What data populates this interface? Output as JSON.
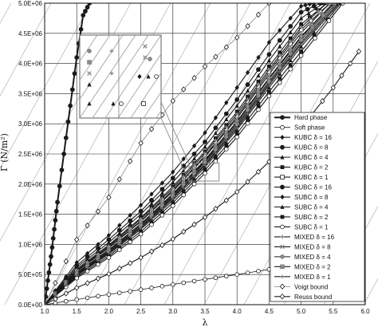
{
  "chart_data": {
    "type": "line",
    "xlabel": "λ",
    "ylabel": "Γ (N/m²)",
    "xlim": [
      1.0,
      6.0
    ],
    "ylim": [
      0,
      5000000
    ],
    "xticks": [
      "1.0",
      "1.5",
      "2.0",
      "2.5",
      "3.0",
      "3.5",
      "4.0",
      "4.5",
      "5.0",
      "5.5",
      "6.0"
    ],
    "yticks": [
      "0.0E+00",
      "5.0E+05",
      "1.0E+06",
      "1.5E+06",
      "2.0E+06",
      "2.5E+06",
      "3.0E+06",
      "3.5E+06",
      "4.0E+06",
      "4.5E+06",
      "5.0E+06"
    ],
    "grid": true,
    "legend_position": "right",
    "has_inset_zoom": true,
    "series": [
      {
        "name": "Hard phase",
        "marker": "circle-filled",
        "line": "thick",
        "x": [
          1.0,
          1.05,
          1.1,
          1.15,
          1.2,
          1.3,
          1.4,
          1.5,
          1.6,
          1.7
        ],
        "y": [
          0,
          400000,
          800000,
          1250000,
          1700000,
          2500000,
          3300000,
          4100000,
          4800000,
          5000000
        ]
      },
      {
        "name": "Soft phase",
        "marker": "circle-open",
        "line": "thin",
        "x": [
          1.0,
          1.5,
          2.0,
          2.5,
          3.0,
          3.5,
          4.0,
          4.5,
          5.0,
          5.5,
          6.0
        ],
        "y": [
          0,
          85000,
          170000,
          250000,
          335000,
          420000,
          500000,
          585000,
          670000,
          750000,
          835000
        ]
      },
      {
        "name": "KUBC δ = 16",
        "marker": "diamond-filled",
        "line": "normal",
        "x": [
          1.0,
          1.5,
          2.0,
          2.5,
          3.0,
          3.5,
          4.0,
          4.5,
          5.0,
          5.2
        ],
        "y": [
          0,
          700000,
          1150000,
          1650000,
          2200000,
          2850000,
          3600000,
          4350000,
          4950000,
          5000000
        ]
      },
      {
        "name": "KUBC δ = 8",
        "marker": "circle-filled",
        "line": "normal",
        "x": [
          1.0,
          1.5,
          2.0,
          2.5,
          3.0,
          3.5,
          4.0,
          4.5,
          5.0,
          5.3
        ],
        "y": [
          0,
          650000,
          1080000,
          1550000,
          2100000,
          2700000,
          3400000,
          4150000,
          4850000,
          5000000
        ]
      },
      {
        "name": "KUBC δ = 4",
        "marker": "triangle-filled",
        "line": "normal",
        "x": [
          1.0,
          1.5,
          2.0,
          2.5,
          3.0,
          3.5,
          4.0,
          4.5,
          5.0,
          5.35
        ],
        "y": [
          0,
          620000,
          1030000,
          1500000,
          2030000,
          2620000,
          3300000,
          4050000,
          4750000,
          5000000
        ]
      },
      {
        "name": "KUBC δ = 2",
        "marker": "square-filled",
        "line": "normal",
        "x": [
          1.0,
          1.5,
          2.0,
          2.5,
          3.0,
          3.5,
          4.0,
          4.5,
          5.0,
          5.4
        ],
        "y": [
          0,
          590000,
          990000,
          1440000,
          1960000,
          2540000,
          3200000,
          3950000,
          4650000,
          5000000
        ]
      },
      {
        "name": "KUBC δ = 1",
        "marker": "square-open",
        "line": "normal",
        "x": [
          1.0,
          1.5,
          2.0,
          2.5,
          3.0,
          3.5,
          4.0,
          4.5,
          5.0,
          5.45
        ],
        "y": [
          0,
          560000,
          950000,
          1390000,
          1900000,
          2470000,
          3120000,
          3860000,
          4560000,
          5000000
        ]
      },
      {
        "name": "SUBC δ = 16",
        "marker": "circle-filled",
        "line": "normal",
        "x": [
          1.0,
          1.5,
          2.0,
          2.5,
          3.0,
          3.5,
          4.0,
          4.5,
          5.0,
          5.5
        ],
        "y": [
          0,
          520000,
          900000,
          1330000,
          1820000,
          2380000,
          3020000,
          3740000,
          4430000,
          5000000
        ]
      },
      {
        "name": "SUBC δ = 8",
        "marker": "diamond-filled",
        "line": "normal",
        "x": [
          1.0,
          1.5,
          2.0,
          2.5,
          3.0,
          3.5,
          4.0,
          4.5,
          5.0,
          5.55
        ],
        "y": [
          0,
          500000,
          870000,
          1290000,
          1780000,
          2330000,
          2960000,
          3670000,
          4350000,
          5000000
        ]
      },
      {
        "name": "SUBC δ = 4",
        "marker": "triangle-filled",
        "line": "normal",
        "x": [
          1.0,
          1.5,
          2.0,
          2.5,
          3.0,
          3.5,
          4.0,
          4.5,
          5.0,
          5.6
        ],
        "y": [
          0,
          480000,
          840000,
          1250000,
          1730000,
          2280000,
          2900000,
          3600000,
          4280000,
          5000000
        ]
      },
      {
        "name": "SUBC δ = 2",
        "marker": "square-filled",
        "line": "normal",
        "x": [
          1.0,
          1.5,
          2.0,
          2.5,
          3.0,
          3.5,
          4.0,
          4.5,
          5.0,
          5.62
        ],
        "y": [
          0,
          460000,
          810000,
          1210000,
          1690000,
          2230000,
          2840000,
          3530000,
          4200000,
          5000000
        ]
      },
      {
        "name": "SUBC δ = 1",
        "marker": "circle-open",
        "line": "normal",
        "x": [
          1.0,
          1.5,
          2.0,
          2.5,
          3.0,
          3.5,
          4.0,
          4.5,
          5.0,
          5.65
        ],
        "y": [
          0,
          440000,
          780000,
          1170000,
          1640000,
          2180000,
          2780000,
          3460000,
          4130000,
          5000000
        ]
      },
      {
        "name": "MIXED δ = 16",
        "marker": "cross",
        "line": "normal",
        "x": [
          1.0,
          1.5,
          2.0,
          2.5,
          3.0,
          3.5,
          4.0,
          4.5,
          5.0,
          5.4
        ],
        "y": [
          0,
          570000,
          970000,
          1420000,
          1930000,
          2510000,
          3160000,
          3900000,
          4600000,
          5000000
        ]
      },
      {
        "name": "MIXED δ = 8",
        "marker": "x-cross",
        "line": "normal",
        "x": [
          1.0,
          1.5,
          2.0,
          2.5,
          3.0,
          3.5,
          4.0,
          4.5,
          5.0,
          5.45
        ],
        "y": [
          0,
          550000,
          940000,
          1380000,
          1880000,
          2450000,
          3090000,
          3820000,
          4510000,
          5000000
        ]
      },
      {
        "name": "MIXED δ = 4",
        "marker": "circle-gray",
        "line": "normal",
        "x": [
          1.0,
          1.5,
          2.0,
          2.5,
          3.0,
          3.5,
          4.0,
          4.5,
          5.0,
          5.5
        ],
        "y": [
          0,
          530000,
          910000,
          1340000,
          1840000,
          2400000,
          3040000,
          3760000,
          4450000,
          5000000
        ]
      },
      {
        "name": "MIXED δ = 2",
        "marker": "square-gray",
        "line": "normal",
        "x": [
          1.0,
          1.5,
          2.0,
          2.5,
          3.0,
          3.5,
          4.0,
          4.5,
          5.0,
          5.52
        ],
        "y": [
          0,
          510000,
          880000,
          1310000,
          1800000,
          2360000,
          2990000,
          3700000,
          4390000,
          5000000
        ]
      },
      {
        "name": "MIXED δ = 1",
        "marker": "plus",
        "line": "normal",
        "x": [
          1.0,
          1.5,
          2.0,
          2.5,
          3.0,
          3.5,
          4.0,
          4.5,
          5.0,
          5.58
        ],
        "y": [
          0,
          490000,
          860000,
          1270000,
          1760000,
          2310000,
          2930000,
          3640000,
          4320000,
          5000000
        ]
      },
      {
        "name": "Voigt bound",
        "marker": "diamond-open",
        "line": "thin-gray",
        "x": [
          1.0,
          1.5,
          2.0,
          2.5,
          3.0,
          3.5,
          4.0,
          4.5
        ],
        "y": [
          0,
          1080000,
          1780000,
          2680000,
          3380000,
          3950000,
          4430000,
          5000000
        ]
      },
      {
        "name": "Reuss bound",
        "marker": "diamond-open",
        "line": "normal",
        "x": [
          1.0,
          1.5,
          2.0,
          2.5,
          3.0,
          3.5,
          4.0,
          4.5,
          5.0,
          5.5,
          5.9
        ],
        "y": [
          0,
          280000,
          510000,
          780000,
          1090000,
          1450000,
          1870000,
          2370000,
          2930000,
          3600000,
          4200000
        ]
      }
    ]
  },
  "colors": {
    "line": "#1a1a1a",
    "gray": "#8c8c8c",
    "grid": "#222222"
  }
}
